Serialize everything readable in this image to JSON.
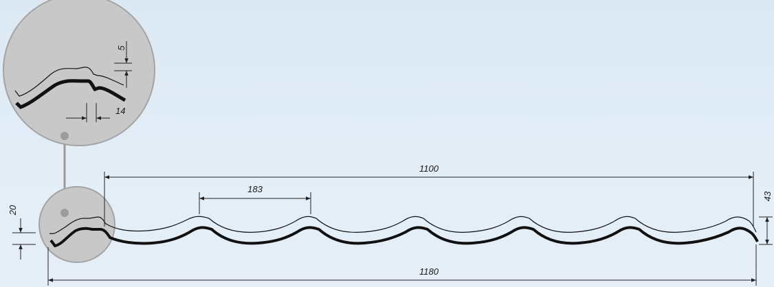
{
  "diagram": {
    "dimensions": {
      "overall_width": "1180",
      "effective_width": "1100",
      "wave_pitch": "183",
      "total_height": "43",
      "step_height": "20",
      "detail_step": "5",
      "detail_offset": "14"
    }
  },
  "colors": {
    "background": "#dfeaf5",
    "circle_fill": "#c8c8c8",
    "circle_stroke": "#9a9a9a",
    "profile": "#111111",
    "dimension_line": "#222222"
  }
}
